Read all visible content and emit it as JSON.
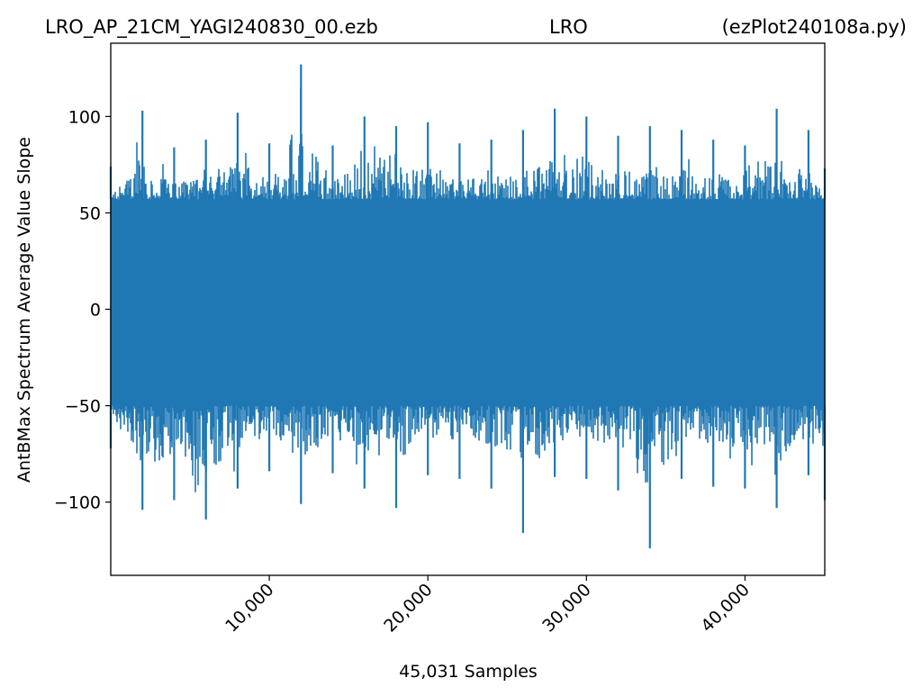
{
  "title": {
    "left": "LRO_AP_21CM_YAGI240830_00.ezb",
    "center": "LRO",
    "right": "(ezPlot240108a.py)"
  },
  "colors": {
    "series": "#1f77b4",
    "axes": "#000000",
    "background": "#ffffff"
  },
  "chart_data": {
    "type": "line",
    "title": "LRO_AP_21CM_YAGI240830_00.ezb LRO (ezPlot240108a.py)",
    "xlabel": "45,031 Samples",
    "ylabel": "AntBMax Spectrum Average Value Slope",
    "xlim": [
      0,
      45030
    ],
    "ylim": [
      -138,
      138
    ],
    "xticks": [
      10000,
      20000,
      30000,
      40000
    ],
    "xtick_labels": [
      "10,000",
      "20,000",
      "30,000",
      "40,000"
    ],
    "yticks": [
      100,
      50,
      0,
      -50,
      -100
    ],
    "ytick_labels": [
      "100",
      "50",
      "0",
      "−50",
      "−100"
    ],
    "grid": false,
    "series": [
      {
        "n_points": 45031,
        "envelope": {
          "sample_index": [
            0,
            2000,
            4000,
            6000,
            8000,
            10000,
            12000,
            14000,
            16000,
            18000,
            20000,
            22000,
            24000,
            26000,
            28000,
            30000,
            32000,
            34000,
            36000,
            38000,
            40000,
            42000,
            44000,
            45030
          ],
          "max": [
            74,
            103,
            84,
            88,
            102,
            86,
            127,
            85,
            100,
            95,
            97,
            86,
            88,
            93,
            104,
            100,
            90,
            95,
            93,
            88,
            85,
            104,
            93,
            73
          ],
          "min": [
            -72,
            -104,
            -99,
            -109,
            -93,
            -84,
            -101,
            -85,
            -93,
            -103,
            -86,
            -88,
            -93,
            -116,
            -87,
            -88,
            -94,
            -124,
            -88,
            -92,
            -93,
            -103,
            -86,
            -99
          ]
        },
        "body_range": [
          -50,
          57
        ]
      }
    ]
  }
}
